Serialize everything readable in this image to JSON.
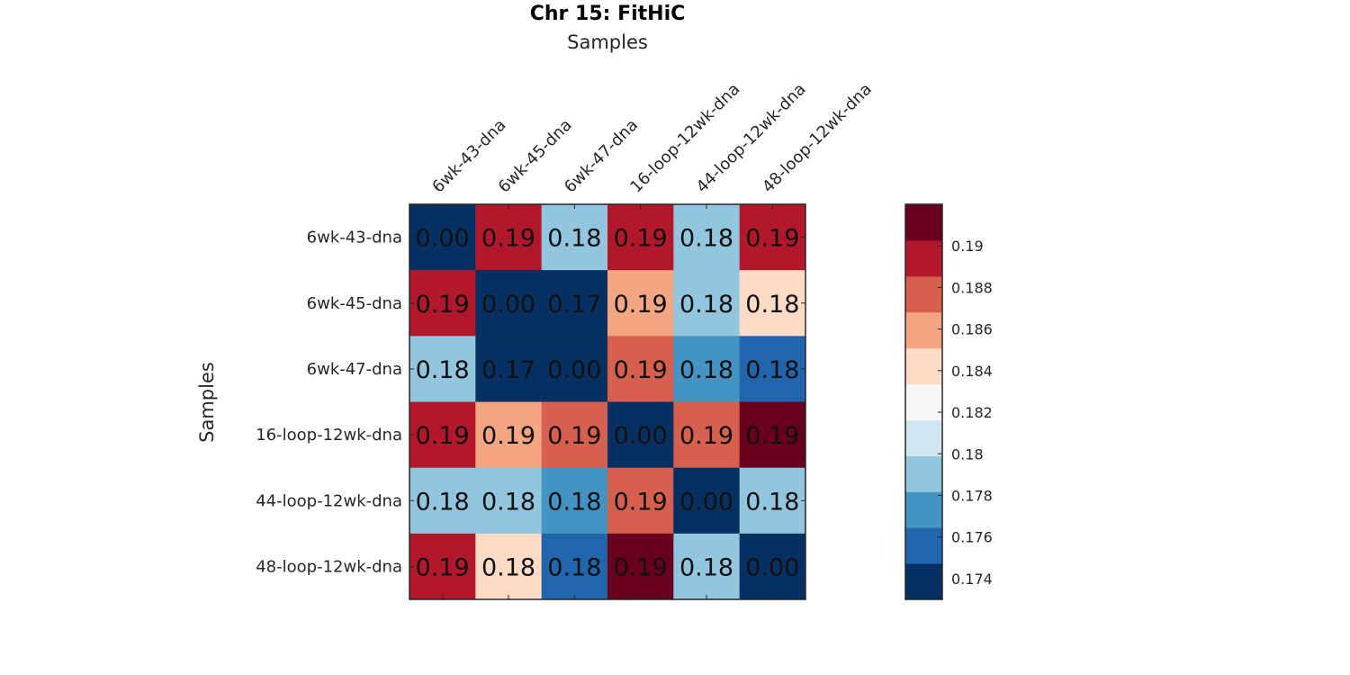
{
  "chart_data": {
    "type": "heatmap",
    "title": "Chr 15: FitHiC",
    "xlabel": "Samples",
    "ylabel": "Samples",
    "x_categories": [
      "6wk-43-dna",
      "6wk-45-dna",
      "6wk-47-dna",
      "16-loop-12wk-dna",
      "44-loop-12wk-dna",
      "48-loop-12wk-dna"
    ],
    "y_categories": [
      "6wk-43-dna",
      "6wk-45-dna",
      "6wk-47-dna",
      "16-loop-12wk-dna",
      "44-loop-12wk-dna",
      "48-loop-12wk-dna"
    ],
    "values": [
      [
        0.0,
        0.189,
        0.179,
        0.189,
        0.179,
        0.189
      ],
      [
        0.189,
        0.0,
        0.173,
        0.186,
        0.179,
        0.184
      ],
      [
        0.179,
        0.173,
        0.0,
        0.188,
        0.177,
        0.176
      ],
      [
        0.189,
        0.186,
        0.188,
        0.0,
        0.188,
        0.191
      ],
      [
        0.179,
        0.179,
        0.177,
        0.188,
        0.0,
        0.179
      ],
      [
        0.189,
        0.184,
        0.176,
        0.191,
        0.179,
        0.0
      ]
    ],
    "labels": [
      [
        "0.00",
        "0.19",
        "0.18",
        "0.19",
        "0.18",
        "0.19"
      ],
      [
        "0.19",
        "0.00",
        "0.17",
        "0.19",
        "0.18",
        "0.18"
      ],
      [
        "0.18",
        "0.17",
        "0.00",
        "0.19",
        "0.18",
        "0.18"
      ],
      [
        "0.19",
        "0.19",
        "0.19",
        "0.00",
        "0.19",
        "0.19"
      ],
      [
        "0.18",
        "0.18",
        "0.18",
        "0.19",
        "0.00",
        "0.18"
      ],
      [
        "0.19",
        "0.18",
        "0.18",
        "0.19",
        "0.18",
        "0.00"
      ]
    ],
    "colorbar": {
      "range": [
        0.173,
        0.192
      ],
      "ticks": [
        0.174,
        0.176,
        0.178,
        0.18,
        0.182,
        0.184,
        0.186,
        0.188,
        0.19
      ],
      "tick_labels": [
        "0.174",
        "0.176",
        "0.178",
        "0.18",
        "0.182",
        "0.184",
        "0.186",
        "0.188",
        "0.19"
      ],
      "colors": [
        "#053061",
        "#2166ac",
        "#4393c3",
        "#92c5de",
        "#d1e5f0",
        "#f7f7f7",
        "#fddbc7",
        "#f4a582",
        "#d6604d",
        "#b2182b",
        "#67001f"
      ]
    },
    "legend_placement": "right",
    "grid": false
  }
}
